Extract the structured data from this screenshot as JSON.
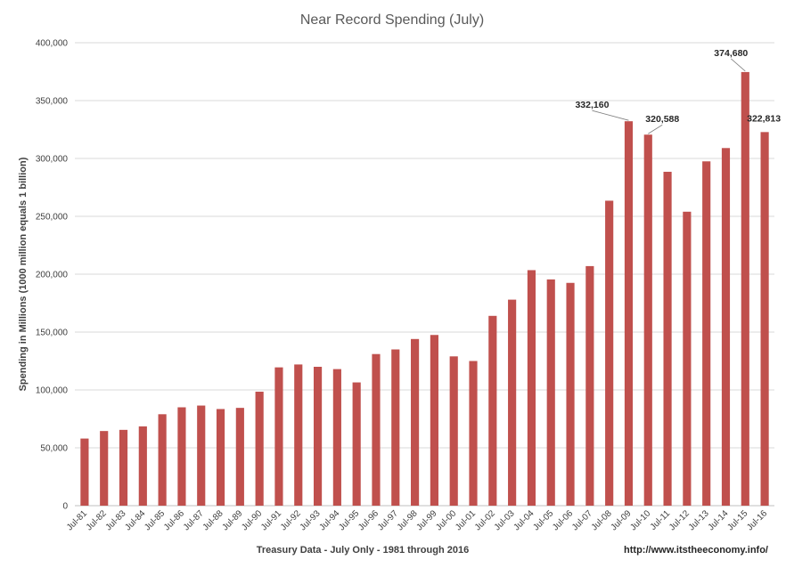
{
  "chart_data": {
    "type": "bar",
    "title": "Near Record Spending (July)",
    "xlabel": "Treasury Data - July Only - 1981 through 2016",
    "ylabel": "Spending in Millions (1000 million equals 1 billion)",
    "ylim": [
      0,
      400000
    ],
    "yticks": [
      0,
      50000,
      100000,
      150000,
      200000,
      250000,
      300000,
      350000,
      400000
    ],
    "ytick_labels": [
      "0",
      "50,000",
      "100,000",
      "150,000",
      "200,000",
      "250,000",
      "300,000",
      "350,000",
      "400,000"
    ],
    "grid": true,
    "legend": "none",
    "bar_color": "#c0504d",
    "categories": [
      "Jul-81",
      "Jul-82",
      "Jul-83",
      "Jul-84",
      "Jul-85",
      "Jul-86",
      "Jul-87",
      "Jul-88",
      "Jul-89",
      "Jul-90",
      "Jul-91",
      "Jul-92",
      "Jul-93",
      "Jul-94",
      "Jul-95",
      "Jul-96",
      "Jul-97",
      "Jul-98",
      "Jul-99",
      "Jul-00",
      "Jul-01",
      "Jul-02",
      "Jul-03",
      "Jul-04",
      "Jul-05",
      "Jul-06",
      "Jul-07",
      "Jul-08",
      "Jul-09",
      "Jul-10",
      "Jul-11",
      "Jul-12",
      "Jul-13",
      "Jul-14",
      "Jul-15",
      "Jul-16"
    ],
    "values": [
      58000,
      64500,
      65500,
      68500,
      79000,
      85000,
      86500,
      83500,
      84500,
      98500,
      119500,
      122000,
      120000,
      118000,
      106500,
      131000,
      135000,
      144000,
      147500,
      129000,
      125000,
      164000,
      178000,
      203500,
      195500,
      192500,
      207000,
      263500,
      332160,
      320588,
      288500,
      254000,
      297500,
      309000,
      374680,
      322813
    ],
    "data_labels": [
      {
        "category": "Jul-09",
        "text": "332,160"
      },
      {
        "category": "Jul-10",
        "text": "320,588"
      },
      {
        "category": "Jul-15",
        "text": "374,680"
      },
      {
        "category": "Jul-16",
        "text": "322,813"
      }
    ],
    "source_url": "http://www.itstheeconomy.info/"
  }
}
